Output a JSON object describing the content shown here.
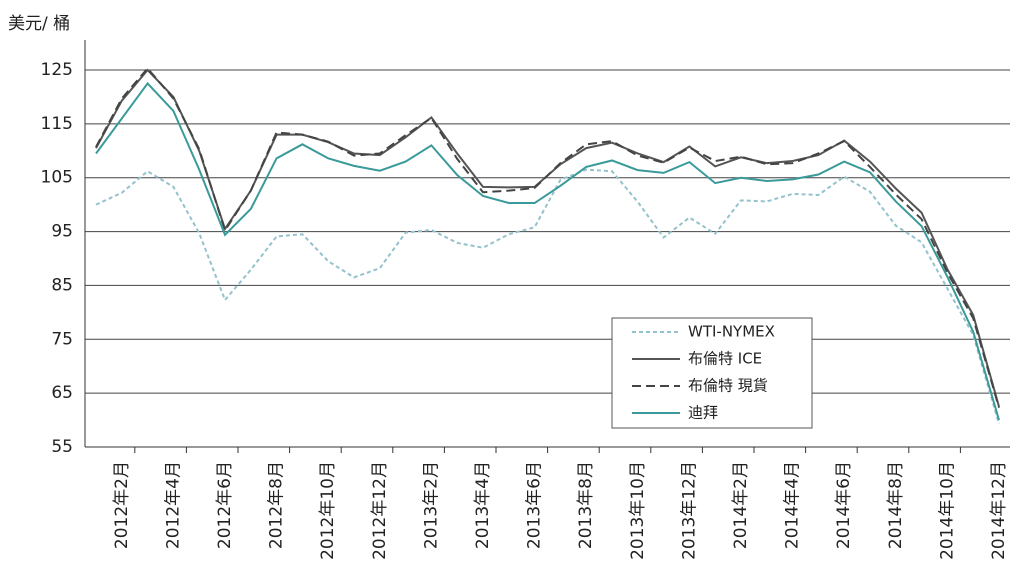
{
  "chart_data": {
    "type": "line",
    "y_label": "美元/ 桶",
    "categories": [
      null,
      "2012年2月",
      null,
      "2012年4月",
      null,
      "2012年6月",
      null,
      "2012年8月",
      null,
      "2012年10月",
      null,
      "2012年12月",
      null,
      "2013年2月",
      null,
      "2013年4月",
      null,
      "2013年6月",
      null,
      "2013年8月",
      null,
      "2013年10月",
      null,
      "2013年12月",
      null,
      "2014年2月",
      null,
      "2014年4月",
      null,
      "2014年6月",
      null,
      "2014年8月",
      null,
      "2014年10月",
      null,
      "2014年12月"
    ],
    "series": [
      {
        "name": "WTI-NYMEX",
        "color": "#94c2cc",
        "dash": "dotted",
        "values": [
          100,
          102.2,
          106.2,
          103.3,
          94.7,
          82.3,
          87.9,
          94.1,
          94.5,
          89.5,
          86.5,
          88.2,
          94.8,
          95.3,
          92.9,
          92.0,
          94.5,
          95.8,
          104.6,
          106.5,
          106.2,
          100.5,
          93.9,
          97.6,
          94.6,
          100.8,
          100.6,
          102.0,
          101.8,
          105.2,
          102.4,
          96.1,
          93.0,
          84.4,
          75.8,
          59.3
        ]
      },
      {
        "name": "布倫特 ICE",
        "color": "#555555",
        "dash": "solid",
        "values": [
          110.5,
          119.3,
          125,
          120,
          110,
          95.5,
          102.6,
          113,
          113,
          111.6,
          109.5,
          109.2,
          112.5,
          116.2,
          109.5,
          103.3,
          103.2,
          103.3,
          107.5,
          110.5,
          111.5,
          109.5,
          107.9,
          110.8,
          107.1,
          108.8,
          107.7,
          108.1,
          109.2,
          111.9,
          108,
          103,
          98.5,
          88,
          79.5,
          62.5
        ]
      },
      {
        "name": "布倫特 現貨",
        "color": "#444444",
        "dash": "dashed",
        "values": [
          110.7,
          119.7,
          125.3,
          119.7,
          110.3,
          95.2,
          102.6,
          113.4,
          113,
          111.7,
          109.1,
          109.5,
          112.9,
          116.1,
          108.5,
          102.3,
          102.6,
          103.1,
          107.7,
          111.2,
          111.8,
          109.1,
          107.8,
          110.6,
          108.1,
          108.9,
          107.5,
          107.7,
          109.5,
          111.8,
          107,
          101.9,
          97.3,
          87.4,
          78.9,
          62.3
        ]
      },
      {
        "name": "迪拜",
        "color": "#3a9a9a",
        "dash": "solid",
        "values": [
          109.5,
          116,
          122.5,
          117.4,
          106.5,
          94.4,
          99.2,
          108.6,
          111.2,
          108.6,
          107.2,
          106.3,
          108,
          111,
          105.5,
          101.6,
          100.3,
          100.3,
          103.5,
          107,
          108.2,
          106.4,
          105.9,
          107.9,
          104.0,
          105.0,
          104.4,
          104.7,
          105.6,
          108,
          106,
          100.6,
          96,
          86.6,
          76.4,
          60
        ]
      }
    ],
    "ylim": [
      55,
      125
    ],
    "yticks": [
      55,
      65,
      75,
      85,
      95,
      105,
      115,
      125
    ],
    "grid": true,
    "legend": "lower right"
  }
}
